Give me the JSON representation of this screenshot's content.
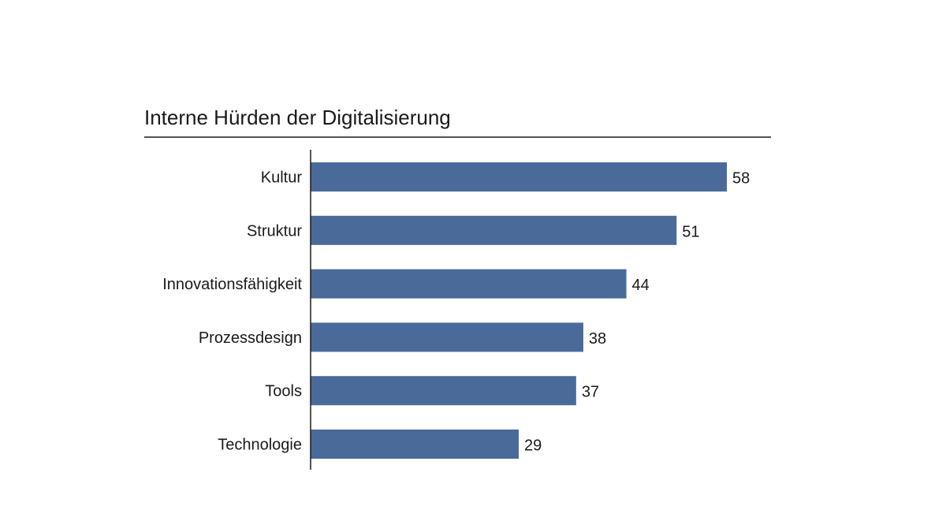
{
  "chart_data": {
    "type": "bar",
    "orientation": "horizontal",
    "title": "Interne Hürden der Digitalisierung",
    "categories": [
      "Kultur",
      "Struktur",
      "Innovationsfähigkeit",
      "Prozessdesign",
      "Tools",
      "Technologie"
    ],
    "values": [
      58,
      51,
      44,
      38,
      37,
      29
    ],
    "xlabel": "",
    "ylabel": "",
    "xlim": [
      0,
      60
    ],
    "grid": false,
    "legend": "none",
    "data_labels": true,
    "bar_color": "#4a6a9a"
  }
}
